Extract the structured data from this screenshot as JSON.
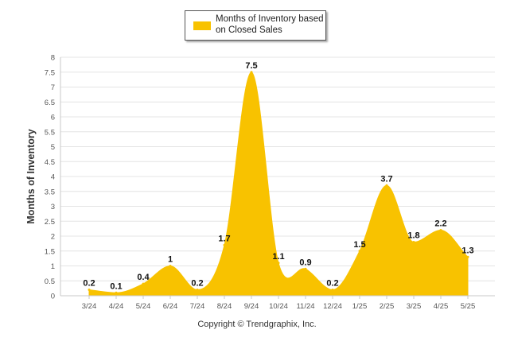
{
  "legend": {
    "label": "Months of Inventory based on Closed Sales",
    "color": "#f8c200"
  },
  "footer": {
    "copyright": "Copyright © Trendgraphix, Inc."
  },
  "chart_data": {
    "type": "area",
    "title": "",
    "xlabel": "",
    "ylabel": "Months of Inventory",
    "ylim": [
      0,
      8
    ],
    "yticks": [
      "0",
      "0.5",
      "1",
      "1.5",
      "2",
      "2.5",
      "3",
      "3.5",
      "4",
      "4.5",
      "5",
      "5.5",
      "6",
      "6.5",
      "7",
      "7.5",
      "8"
    ],
    "grid": true,
    "legend_position": "top-center",
    "categories": [
      "3/24",
      "4/24",
      "5/24",
      "6/24",
      "7/24",
      "8/24",
      "9/24",
      "10/24",
      "11/24",
      "12/24",
      "1/25",
      "2/25",
      "3/25",
      "4/25",
      "5/25"
    ],
    "series": [
      {
        "name": "Months of Inventory based on Closed Sales",
        "color": "#f8c200",
        "values": [
          0.2,
          0.1,
          0.4,
          1,
          0.2,
          1.7,
          7.5,
          1.1,
          0.9,
          0.2,
          1.5,
          3.7,
          1.8,
          2.2,
          1.3
        ],
        "labels": [
          "0.2",
          "0.1",
          "0.4",
          "1",
          "0.2",
          "1.7",
          "7.5",
          "1.1",
          "0.9",
          "0.2",
          "1.5",
          "3.7",
          "1.8",
          "2.2",
          "1.3"
        ]
      }
    ]
  }
}
